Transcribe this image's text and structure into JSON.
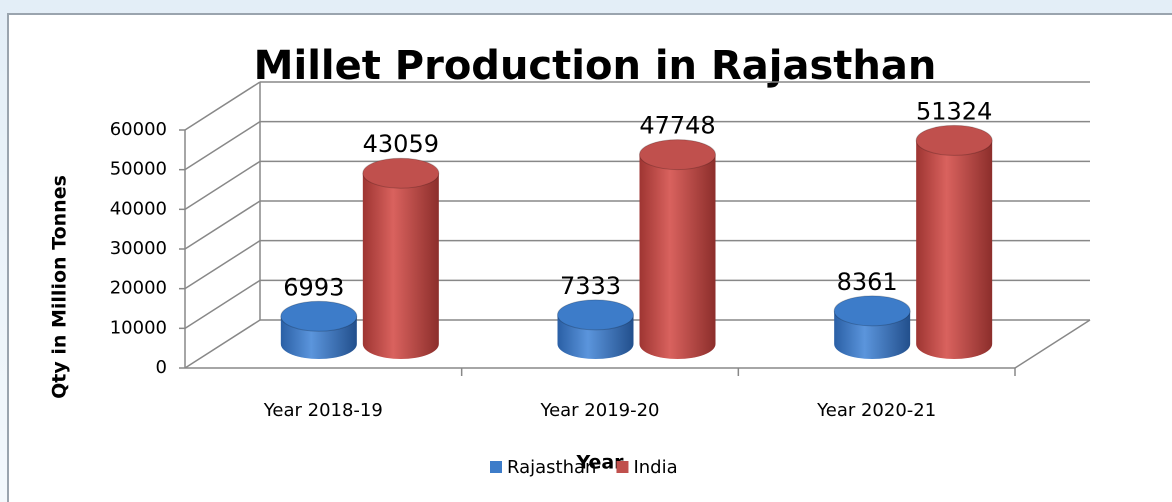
{
  "chart_data": {
    "type": "bar3d",
    "title": "Millet Production in Rajasthan",
    "x_label": "Year",
    "y_label": "Qty in Million Tonnes",
    "categories": [
      "Year 2018-19",
      "Year 2019-20",
      "Year 2020-21"
    ],
    "series": [
      {
        "name": "Rajasthan",
        "color": "#3d7cc9",
        "values": [
          6993,
          7333,
          8361
        ]
      },
      {
        "name": "India",
        "color": "#c0504d",
        "values": [
          43059,
          47748,
          51324
        ]
      }
    ],
    "ylim": [
      0,
      60000
    ],
    "yticks": [
      0,
      10000,
      20000,
      30000,
      40000,
      50000,
      60000
    ],
    "grid": true,
    "legend": "bottom"
  }
}
